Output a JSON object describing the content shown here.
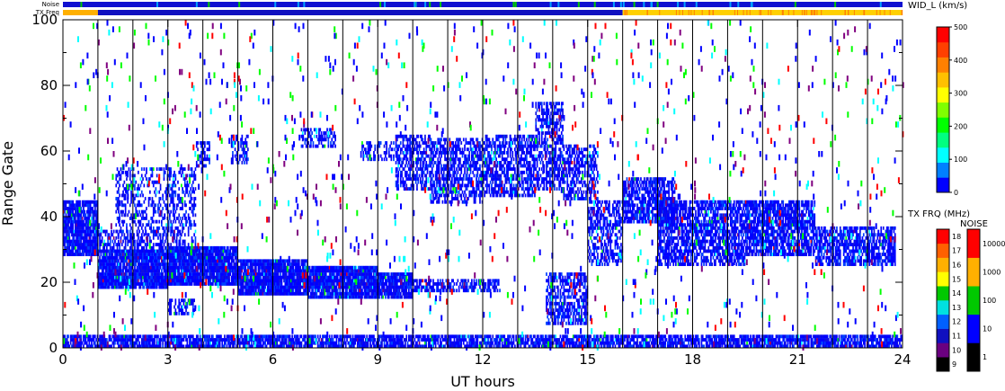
{
  "chart_data": {
    "type": "heatmap",
    "x_axis": {
      "label": "UT hours",
      "range": [
        0,
        24
      ],
      "ticks": [
        "0",
        "3",
        "6",
        "9",
        "12",
        "15",
        "18",
        "21",
        "24"
      ]
    },
    "y_axis": {
      "label": "Range Gate",
      "range": [
        0,
        100
      ],
      "ticks": [
        "0",
        "20",
        "40",
        "60",
        "80",
        "100"
      ]
    },
    "strips": {
      "noise_label": "Noise",
      "freq_label": "TX Freq",
      "freq_switch_hour": 16
    },
    "vertical_grid_hours": [
      1,
      2,
      3,
      4,
      5,
      6,
      7,
      8,
      9,
      10,
      11,
      12,
      13,
      14,
      15,
      16,
      17,
      18,
      19,
      20,
      21,
      22,
      23
    ],
    "width_colorbar": {
      "title": "WID_L (km/s)",
      "range": [
        0,
        500
      ],
      "ticks": [
        "0",
        "100",
        "200",
        "300",
        "400",
        "500"
      ],
      "colors": [
        "#0000ff",
        "#0080ff",
        "#00ffff",
        "#00ff80",
        "#00ff00",
        "#80ff00",
        "#ffff00",
        "#ffc000",
        "#ff8000",
        "#ff4000",
        "#ff0000"
      ]
    },
    "freq_colorbar": {
      "title": "TX FRQ (MHz)",
      "ticks": [
        "9",
        "10",
        "11",
        "12",
        "13",
        "14",
        "15",
        "16",
        "17",
        "18"
      ],
      "colors": [
        "#000000",
        "#6a0080",
        "#1010c0",
        "#0060ff",
        "#00e0e0",
        "#00c800",
        "#ffff00",
        "#ffb000",
        "#ff6000",
        "#ff0000"
      ]
    },
    "noise_colorbar": {
      "title": "NOISE",
      "ticks": [
        "1",
        "10",
        "100",
        "1000",
        "10000"
      ],
      "colors": [
        "#000000",
        "#0000ff",
        "#00c800",
        "#ffb000",
        "#ff0000"
      ]
    },
    "echo_regions": [
      {
        "t0": 0.0,
        "t1": 1.0,
        "g0": 28,
        "g1": 45,
        "density": 0.9
      },
      {
        "t0": 1.0,
        "t1": 3.0,
        "g0": 18,
        "g1": 30,
        "density": 0.95
      },
      {
        "t0": 3.0,
        "t1": 5.0,
        "g0": 19,
        "g1": 31,
        "density": 0.95
      },
      {
        "t0": 5.0,
        "t1": 7.0,
        "g0": 16,
        "g1": 27,
        "density": 0.95
      },
      {
        "t0": 7.0,
        "t1": 9.0,
        "g0": 15,
        "g1": 25,
        "density": 0.95
      },
      {
        "t0": 9.0,
        "t1": 10.0,
        "g0": 15,
        "g1": 23,
        "density": 0.9
      },
      {
        "t0": 10.0,
        "t1": 12.5,
        "g0": 17,
        "g1": 21,
        "density": 0.6
      },
      {
        "t0": 1.0,
        "t1": 3.0,
        "g0": 30,
        "g1": 36,
        "density": 0.45
      },
      {
        "t0": 1.5,
        "t1": 3.2,
        "g0": 36,
        "g1": 55,
        "density": 0.35
      },
      {
        "t0": 3.0,
        "t1": 3.8,
        "g0": 28,
        "g1": 55,
        "density": 0.35
      },
      {
        "t0": 3.0,
        "t1": 3.8,
        "g0": 10,
        "g1": 15,
        "density": 0.5
      },
      {
        "t0": 3.8,
        "t1": 4.2,
        "g0": 55,
        "g1": 63,
        "density": 0.45
      },
      {
        "t0": 4.8,
        "t1": 5.3,
        "g0": 56,
        "g1": 65,
        "density": 0.5
      },
      {
        "t0": 6.8,
        "t1": 7.8,
        "g0": 61,
        "g1": 67,
        "density": 0.5
      },
      {
        "t0": 8.5,
        "t1": 9.5,
        "g0": 57,
        "g1": 63,
        "density": 0.4
      },
      {
        "t0": 9.5,
        "t1": 10.5,
        "g0": 48,
        "g1": 65,
        "density": 0.55
      },
      {
        "t0": 10.5,
        "t1": 12.0,
        "g0": 44,
        "g1": 64,
        "density": 0.6
      },
      {
        "t0": 12.0,
        "t1": 13.5,
        "g0": 46,
        "g1": 65,
        "density": 0.6
      },
      {
        "t0": 13.5,
        "t1": 14.3,
        "g0": 48,
        "g1": 75,
        "density": 0.55
      },
      {
        "t0": 14.3,
        "t1": 15.3,
        "g0": 45,
        "g1": 62,
        "density": 0.55
      },
      {
        "t0": 13.8,
        "t1": 15.0,
        "g0": 7,
        "g1": 23,
        "density": 0.6
      },
      {
        "t0": 15.0,
        "t1": 16.0,
        "g0": 25,
        "g1": 45,
        "density": 0.5
      },
      {
        "t0": 16.0,
        "t1": 17.5,
        "g0": 38,
        "g1": 52,
        "density": 0.7
      },
      {
        "t0": 17.0,
        "t1": 19.5,
        "g0": 25,
        "g1": 45,
        "density": 0.7
      },
      {
        "t0": 19.5,
        "t1": 21.5,
        "g0": 28,
        "g1": 45,
        "density": 0.75
      },
      {
        "t0": 21.5,
        "t1": 23.8,
        "g0": 25,
        "g1": 37,
        "density": 0.7
      },
      {
        "t0": 0.0,
        "t1": 24.0,
        "g0": 0,
        "g1": 4,
        "density": 0.8
      }
    ]
  }
}
